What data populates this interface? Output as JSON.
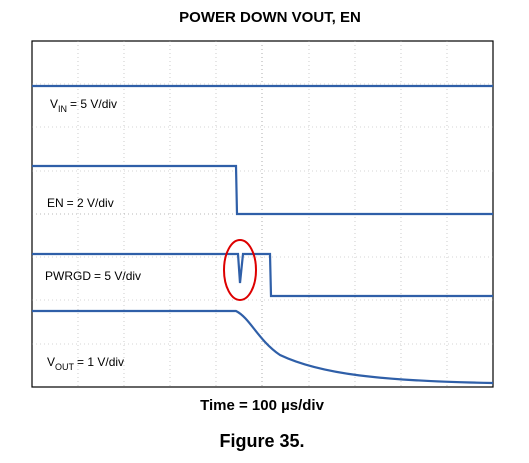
{
  "title": "POWER DOWN VOUT, EN",
  "traces": [
    {
      "symbol": "V",
      "subscript": "IN",
      "scale": "= 5 V/div"
    },
    {
      "symbol": "EN",
      "subscript": null,
      "scale": "= 2 V/div"
    },
    {
      "symbol": "PWRGD",
      "subscript": null,
      "scale": "= 5 V/div"
    },
    {
      "symbol": "V",
      "subscript": "OUT",
      "scale": "= 1 V/div"
    }
  ],
  "x_label": "Time = 100 µs/div",
  "caption": "Figure 35."
}
